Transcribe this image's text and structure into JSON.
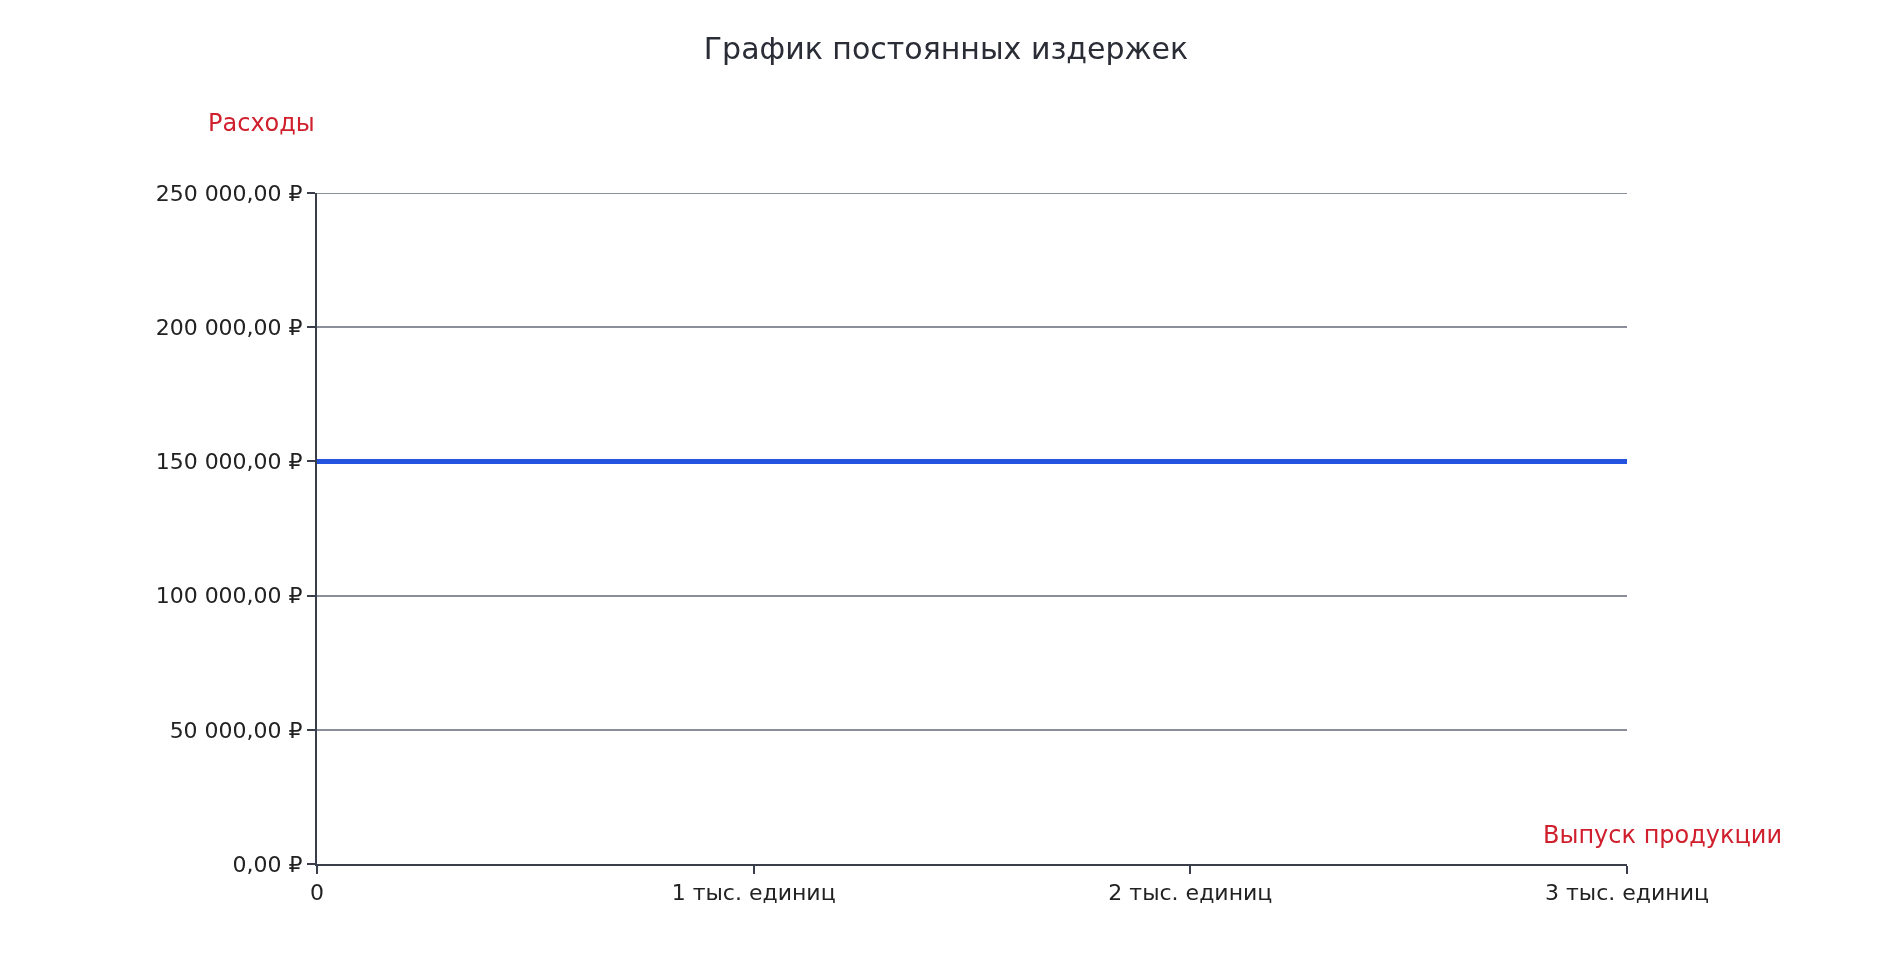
{
  "chart_data": {
    "type": "line",
    "title": "График постоянных издержек",
    "xlabel": "Выпуск продукции",
    "ylabel": "Расходы",
    "x": [
      0,
      3
    ],
    "series": [
      {
        "color": "#2453e0",
        "values": [
          150000,
          150000
        ]
      }
    ],
    "xlim": [
      0,
      3
    ],
    "xticks": [
      0,
      {
        "value": 1,
        "label": "1 тыс. единиц"
      },
      {
        "value": 2,
        "label": "2 тыс. единиц"
      },
      {
        "value": 3,
        "label": "3 тыс. единиц"
      }
    ],
    "ylim": [
      0,
      250000
    ],
    "yticks": [
      {
        "value": 0,
        "label": "0,00 ₽"
      },
      {
        "value": 50000,
        "label": "50 000,00 ₽"
      },
      {
        "value": 100000,
        "label": "100 000,00 ₽"
      },
      {
        "value": 150000,
        "label": "150 000,00 ₽"
      },
      {
        "value": 200000,
        "label": "200 000,00 ₽"
      },
      {
        "value": 250000,
        "label": "250 000,00 ₽"
      }
    ],
    "grid": "y",
    "marker": "none",
    "line_style": "solid"
  }
}
